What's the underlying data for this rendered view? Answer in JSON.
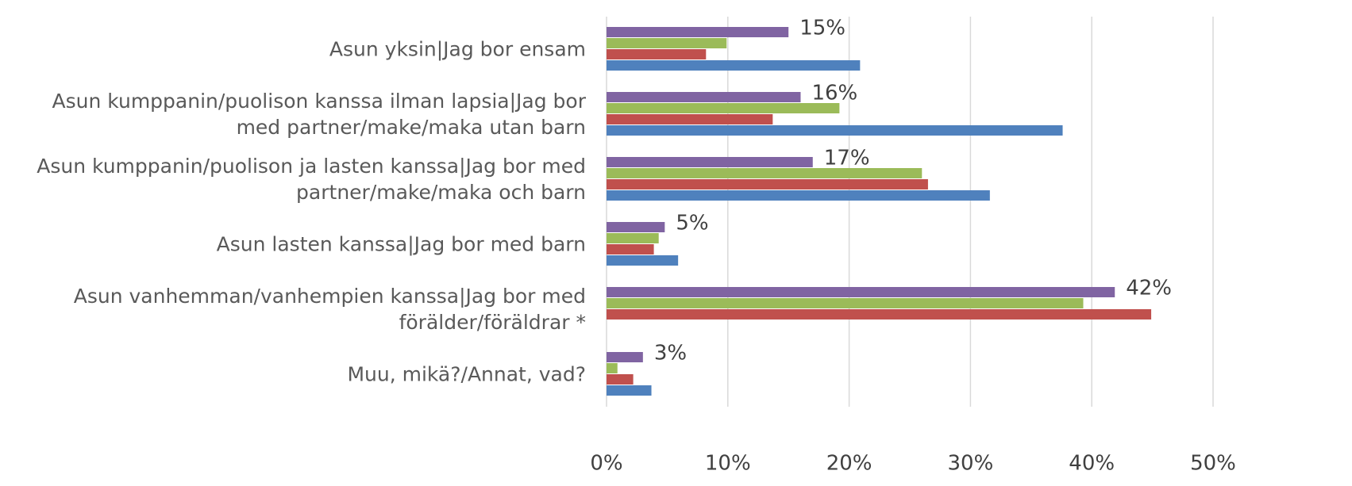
{
  "chart_data": {
    "type": "bar",
    "orientation": "horizontal",
    "categories": [
      "Asun yksin|Jag bor ensam",
      "Asun kumppanin/puolison kanssa ilman lapsia|Jag bor med partner/make/maka utan barn",
      "Asun kumppanin/puolison ja lasten kanssa|Jag bor med partner/make/maka och barn",
      "Asun lasten kanssa|Jag bor med barn",
      "Asun vanhemman/vanhempien kanssa|Jag bor med förälder/föräldrar *",
      "Muu, mikä?/Annat, vad?"
    ],
    "series": [
      {
        "color": "#8064a2",
        "values": [
          15,
          16,
          17,
          4.8,
          41.9,
          3
        ],
        "value_labels": [
          "15%",
          "16%",
          "17%",
          "5%",
          "42%",
          "3%"
        ]
      },
      {
        "color": "#9bbb59",
        "values": [
          9.9,
          19.2,
          26,
          4.3,
          39.3,
          0.9
        ]
      },
      {
        "color": "#c0504d",
        "values": [
          8.2,
          13.7,
          26.5,
          3.9,
          44.9,
          2.2
        ]
      },
      {
        "color": "#4f81bd",
        "values": [
          20.9,
          37.6,
          31.6,
          5.9,
          null,
          3.7
        ]
      }
    ],
    "xlim": [
      0,
      50
    ],
    "xticks": [
      {
        "value": 0,
        "label": "0%"
      },
      {
        "value": 10,
        "label": "10%"
      },
      {
        "value": 20,
        "label": "20%"
      },
      {
        "value": 30,
        "label": "30%"
      },
      {
        "value": 40,
        "label": "40%"
      },
      {
        "value": 50,
        "label": "50%"
      }
    ],
    "grid": true
  }
}
